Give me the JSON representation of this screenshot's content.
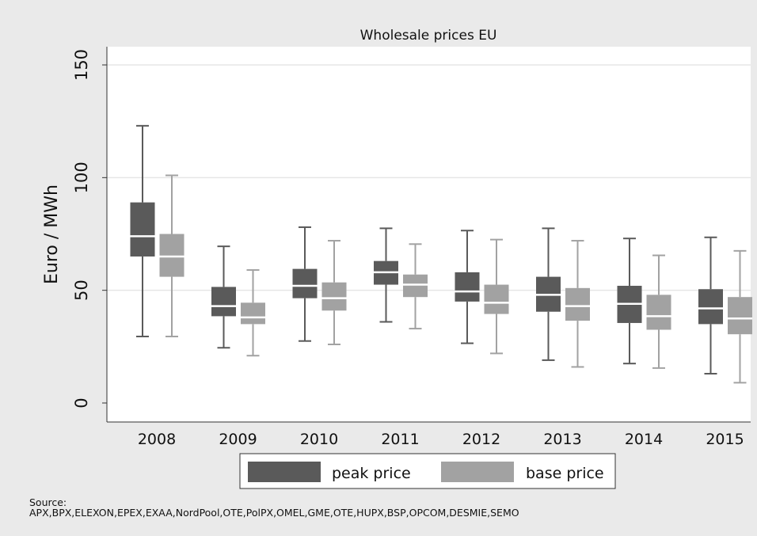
{
  "chart_data": {
    "type": "box",
    "title": "Wholesale prices EU",
    "ylabel": "Euro / MWh",
    "xlabel": "",
    "ylim": [
      0,
      150
    ],
    "yticks": [
      0,
      50,
      100,
      150
    ],
    "categories": [
      "2008",
      "2009",
      "2010",
      "2011",
      "2012",
      "2013",
      "2014",
      "2015"
    ],
    "grid": true,
    "legend_position": "bottom",
    "series": [
      {
        "name": "peak price",
        "color": "#5a5a5a",
        "boxes": [
          {
            "min": 29.5,
            "q1": 65,
            "median": 74,
            "q3": 89,
            "max": 123
          },
          {
            "min": 24.5,
            "q1": 38.5,
            "median": 43,
            "q3": 51.5,
            "max": 69.5
          },
          {
            "min": 27.5,
            "q1": 46.5,
            "median": 52,
            "q3": 59.5,
            "max": 78
          },
          {
            "min": 36,
            "q1": 52.5,
            "median": 58,
            "q3": 63,
            "max": 77.5
          },
          {
            "min": 26.5,
            "q1": 45,
            "median": 49.5,
            "q3": 58,
            "max": 76.5
          },
          {
            "min": 19,
            "q1": 40.5,
            "median": 48,
            "q3": 56,
            "max": 77.5
          },
          {
            "min": 17.5,
            "q1": 35.5,
            "median": 44,
            "q3": 52,
            "max": 73
          },
          {
            "min": 13,
            "q1": 35,
            "median": 42,
            "q3": 50.5,
            "max": 73.5
          }
        ]
      },
      {
        "name": "base price",
        "color": "#a2a2a2",
        "boxes": [
          {
            "min": 29.5,
            "q1": 56,
            "median": 65,
            "q3": 75,
            "max": 101
          },
          {
            "min": 21,
            "q1": 35,
            "median": 38,
            "q3": 44.5,
            "max": 59
          },
          {
            "min": 26,
            "q1": 41,
            "median": 46.5,
            "q3": 53.5,
            "max": 72
          },
          {
            "min": 33,
            "q1": 47,
            "median": 52.5,
            "q3": 57,
            "max": 70.5
          },
          {
            "min": 22,
            "q1": 39.5,
            "median": 44.5,
            "q3": 52.5,
            "max": 72.5
          },
          {
            "min": 16,
            "q1": 36.5,
            "median": 43,
            "q3": 51,
            "max": 72
          },
          {
            "min": 15.5,
            "q1": 32.5,
            "median": 38.5,
            "q3": 48,
            "max": 65.5
          },
          {
            "min": 9,
            "q1": 30.5,
            "median": 37.5,
            "q3": 47,
            "max": 67.5
          }
        ]
      }
    ]
  },
  "source_note": {
    "label": "Source:",
    "text": "APX,BPX,ELEXON,EPEX,EXAA,NordPool,OTE,PolPX,OMEL,GME,OTE,HUPX,BSP,OPCOM,DESMIE,SEMO"
  }
}
